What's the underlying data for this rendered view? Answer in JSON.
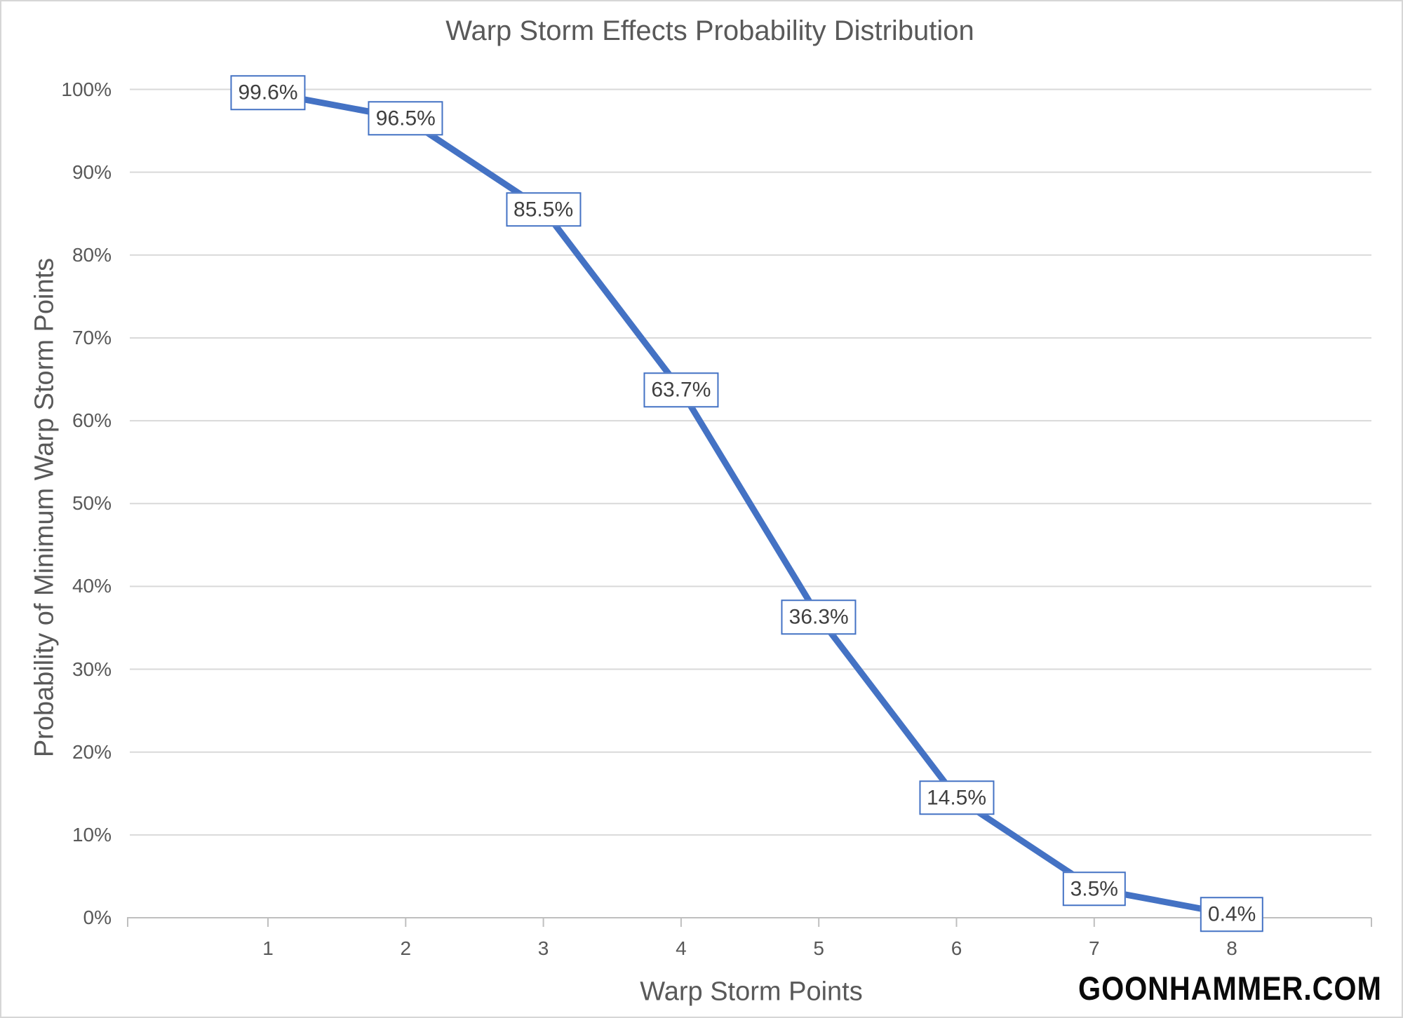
{
  "title": "Warp Storm Effects Probability Distribution",
  "watermark": "GOONHAMMER.COM",
  "colors": {
    "series": "#4472C4",
    "gridline": "#D9D9D9",
    "axis_line": "#BFBFBF",
    "text": "#595959",
    "data_label_text": "#3F3F3F",
    "data_label_fill": "#FFFFFF",
    "watermark_text": "#0A0A0A"
  },
  "chart_data": {
    "type": "line",
    "title": "Warp Storm Effects Probability Distribution",
    "xlabel": "Warp Storm Points",
    "ylabel": "Probability of Minimum Warp Storm Points",
    "categories": [
      "1",
      "2",
      "3",
      "4",
      "5",
      "6",
      "7",
      "8"
    ],
    "values": [
      99.6,
      96.5,
      85.5,
      63.7,
      36.3,
      14.5,
      3.5,
      0.4
    ],
    "data_labels": [
      "99.6%",
      "96.5%",
      "85.5%",
      "63.7%",
      "36.3%",
      "14.5%",
      "3.5%",
      "0.4%"
    ],
    "ylim": [
      0,
      100
    ],
    "ytick_step": 10,
    "ytick_labels": [
      "0%",
      "10%",
      "20%",
      "30%",
      "40%",
      "50%",
      "60%",
      "70%",
      "80%",
      "90%",
      "100%"
    ],
    "grid": true,
    "legend": "none",
    "data_label_position": "center",
    "line_color": "#4472C4"
  }
}
